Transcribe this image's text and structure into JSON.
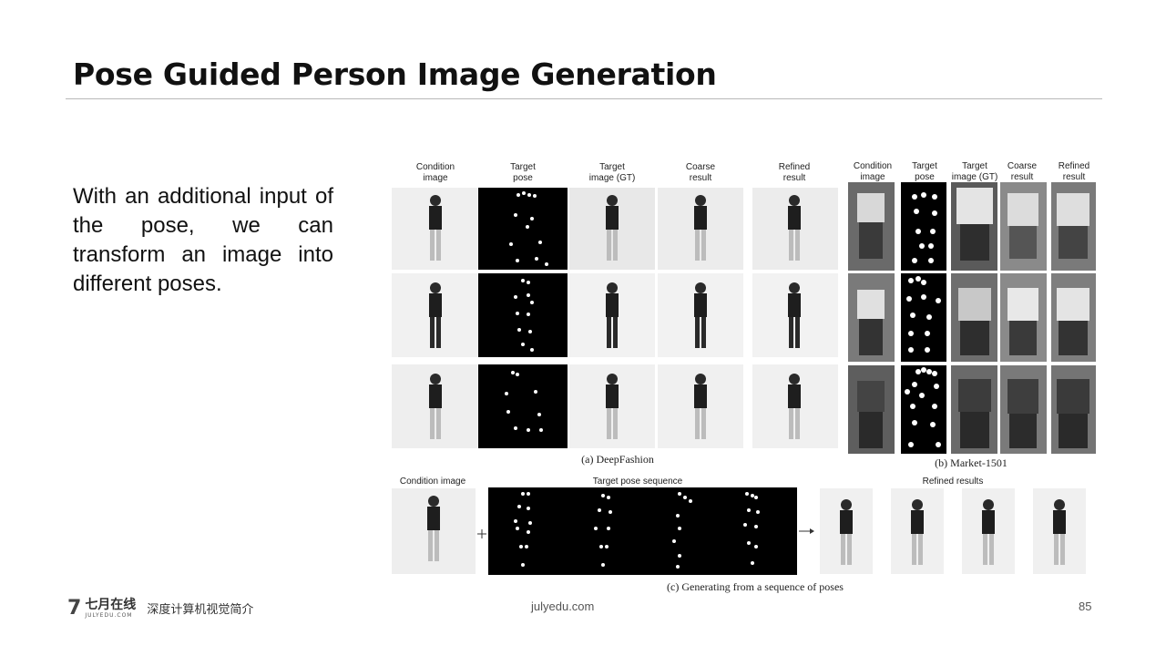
{
  "slide": {
    "title": "Pose Guided Person Image Generation",
    "body": "With an additional input of the pose, we can transform an image into different poses."
  },
  "figure": {
    "deepfashion_headers": [
      [
        "Condition",
        "image"
      ],
      [
        "Target",
        "pose"
      ],
      [
        "Target",
        "image (GT)"
      ],
      [
        "Coarse",
        "result"
      ],
      [
        "Refined",
        "result"
      ]
    ],
    "market_headers": [
      [
        "Condition",
        "image"
      ],
      [
        "Target",
        "pose"
      ],
      [
        "Target",
        "image (GT)"
      ],
      [
        "Coarse",
        "result"
      ],
      [
        "Refined",
        "result"
      ]
    ],
    "caption_a": "(a)  DeepFashion",
    "caption_b": "(b) Market-1501",
    "seq_condition_label": "Condition image",
    "seq_pose_label": "Target pose sequence",
    "seq_refined_label": "Refined results",
    "caption_c": "(c) Generating from a sequence of poses"
  },
  "footer": {
    "logo_mark": "7",
    "logo_cn": "七月在线",
    "logo_en": "JULYEDU.COM",
    "course": "深度计算机视觉简介",
    "site": "julyedu.com",
    "page": "85"
  }
}
